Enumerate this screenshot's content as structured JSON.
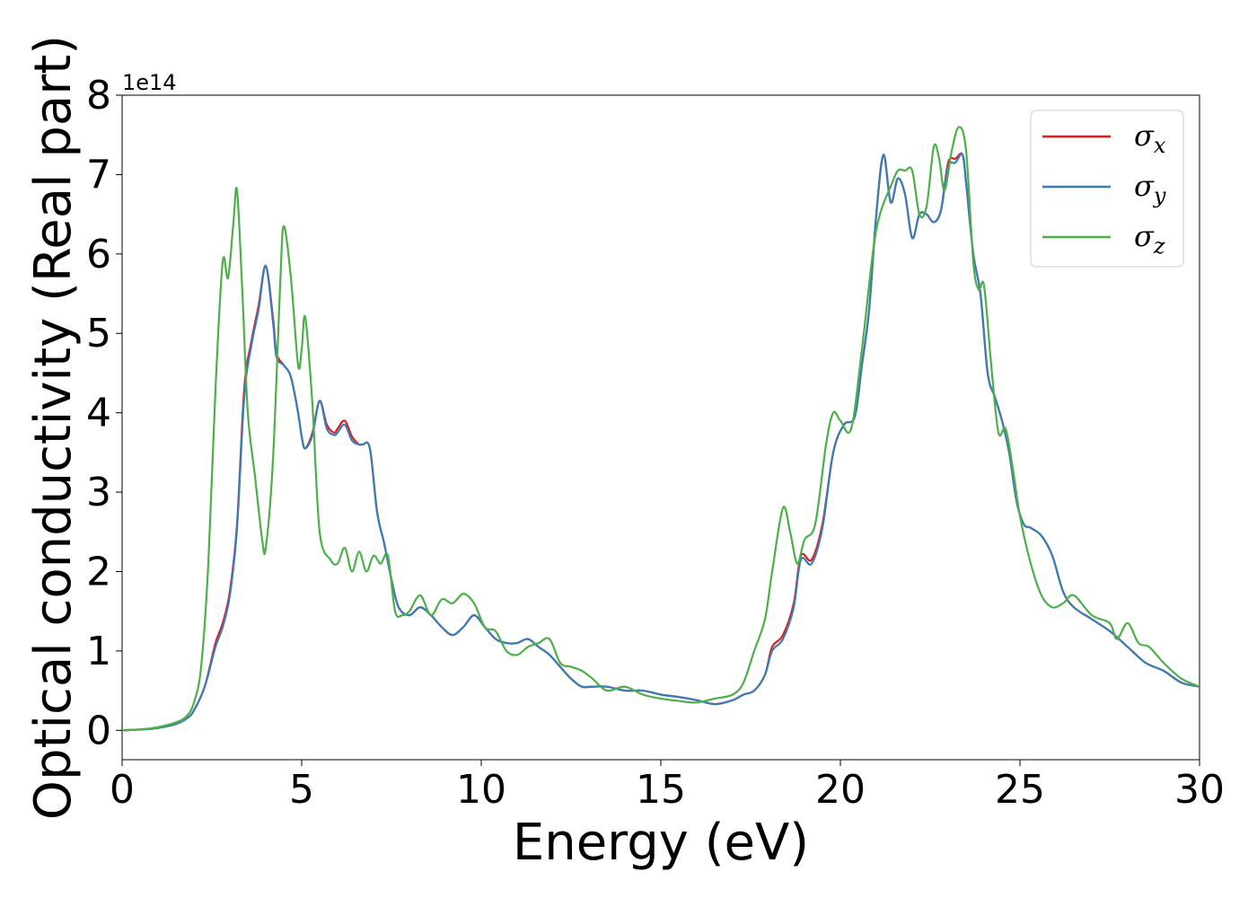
{
  "chart_data": {
    "type": "line",
    "xlabel": "Energy (eV)",
    "ylabel": "Optical conductivity (Real part)",
    "y_offset_label": "1e14",
    "y_scale_factor": 100000000000000.0,
    "xlim": [
      0,
      30
    ],
    "ylim": [
      -0.37,
      8.0
    ],
    "xticks": [
      0,
      5,
      10,
      15,
      20,
      25,
      30
    ],
    "xtick_labels": [
      "0",
      "5",
      "10",
      "15",
      "20",
      "25",
      "30"
    ],
    "yticks": [
      0,
      1,
      2,
      3,
      4,
      5,
      6,
      7,
      8
    ],
    "ytick_labels": [
      "0",
      "1",
      "2",
      "3",
      "4",
      "5",
      "6",
      "7",
      "8"
    ],
    "grid": false,
    "legend_position": "top-right",
    "series": [
      {
        "name": "σx",
        "legend_base": "σ",
        "legend_sub": "x",
        "color": "#e41a1c",
        "x": [
          0,
          0.5,
          1,
          1.5,
          1.8,
          2.0,
          2.3,
          2.6,
          2.8,
          3.0,
          3.2,
          3.4,
          3.6,
          3.8,
          4.0,
          4.2,
          4.3,
          4.5,
          4.7,
          4.9,
          5.0,
          5.1,
          5.3,
          5.5,
          5.7,
          5.9,
          6.0,
          6.2,
          6.4,
          6.6,
          6.7,
          6.9,
          7.1,
          7.3,
          7.5,
          7.7,
          8.0,
          8.3,
          8.6,
          8.9,
          9.2,
          9.5,
          9.8,
          10.1,
          10.4,
          10.7,
          11.0,
          11.3,
          11.6,
          11.9,
          12.2,
          12.5,
          12.8,
          13.1,
          13.5,
          14.0,
          14.5,
          15.0,
          15.5,
          16.0,
          16.5,
          17.0,
          17.3,
          17.6,
          17.9,
          18.1,
          18.4,
          18.7,
          18.9,
          19.2,
          19.5,
          19.8,
          20.1,
          20.4,
          20.6,
          20.8,
          21.0,
          21.2,
          21.4,
          21.6,
          21.8,
          22.0,
          22.2,
          22.4,
          22.6,
          22.8,
          23.0,
          23.2,
          23.4,
          23.5,
          23.7,
          23.9,
          24.1,
          24.3,
          24.5,
          24.7,
          24.9,
          25.1,
          25.3,
          25.6,
          25.9,
          26.2,
          26.5,
          27.0,
          27.5,
          28.0,
          28.5,
          29.0,
          29.5,
          30.0
        ],
        "y": [
          0,
          0.01,
          0.03,
          0.08,
          0.15,
          0.25,
          0.55,
          1.1,
          1.35,
          1.75,
          2.6,
          4.3,
          4.9,
          5.35,
          5.85,
          5.2,
          4.75,
          4.6,
          4.45,
          4.0,
          3.7,
          3.55,
          3.75,
          4.15,
          3.85,
          3.75,
          3.8,
          3.9,
          3.7,
          3.6,
          3.6,
          3.55,
          2.75,
          2.35,
          1.9,
          1.55,
          1.45,
          1.55,
          1.45,
          1.3,
          1.2,
          1.3,
          1.45,
          1.3,
          1.15,
          1.1,
          1.1,
          1.15,
          1.05,
          0.95,
          0.8,
          0.65,
          0.55,
          0.55,
          0.55,
          0.5,
          0.5,
          0.45,
          0.42,
          0.38,
          0.33,
          0.38,
          0.45,
          0.5,
          0.7,
          1.05,
          1.2,
          1.6,
          2.2,
          2.15,
          2.6,
          3.5,
          3.85,
          3.95,
          4.6,
          5.3,
          6.5,
          7.25,
          6.65,
          6.95,
          6.75,
          6.2,
          6.5,
          6.5,
          6.4,
          6.55,
          7.15,
          7.2,
          7.25,
          6.9,
          6.0,
          5.5,
          4.5,
          4.2,
          3.9,
          3.5,
          2.9,
          2.6,
          2.55,
          2.45,
          2.2,
          1.75,
          1.55,
          1.4,
          1.25,
          1.05,
          0.85,
          0.75,
          0.6,
          0.55
        ]
      },
      {
        "name": "σy",
        "legend_base": "σ",
        "legend_sub": "y",
        "color": "#377eb8",
        "x": [
          0,
          0.5,
          1,
          1.5,
          1.8,
          2.0,
          2.3,
          2.6,
          2.8,
          3.0,
          3.2,
          3.4,
          3.6,
          3.8,
          4.0,
          4.2,
          4.3,
          4.5,
          4.7,
          4.9,
          5.0,
          5.1,
          5.3,
          5.5,
          5.7,
          5.9,
          6.0,
          6.2,
          6.4,
          6.6,
          6.7,
          6.9,
          7.1,
          7.3,
          7.5,
          7.7,
          8.0,
          8.3,
          8.6,
          8.9,
          9.2,
          9.5,
          9.8,
          10.1,
          10.4,
          10.7,
          11.0,
          11.3,
          11.6,
          11.9,
          12.2,
          12.5,
          12.8,
          13.1,
          13.5,
          14.0,
          14.5,
          15.0,
          15.5,
          16.0,
          16.5,
          17.0,
          17.3,
          17.6,
          17.9,
          18.1,
          18.4,
          18.7,
          18.9,
          19.2,
          19.5,
          19.8,
          20.1,
          20.4,
          20.6,
          20.8,
          21.0,
          21.2,
          21.4,
          21.6,
          21.8,
          22.0,
          22.2,
          22.4,
          22.6,
          22.8,
          23.0,
          23.2,
          23.4,
          23.5,
          23.7,
          23.9,
          24.1,
          24.3,
          24.5,
          24.7,
          24.9,
          25.1,
          25.3,
          25.6,
          25.9,
          26.2,
          26.5,
          27.0,
          27.5,
          28.0,
          28.5,
          29.0,
          29.5,
          30.0
        ],
        "y": [
          0,
          0.01,
          0.03,
          0.08,
          0.15,
          0.25,
          0.55,
          1.05,
          1.3,
          1.7,
          2.55,
          4.2,
          4.85,
          5.3,
          5.85,
          5.15,
          4.7,
          4.6,
          4.45,
          4.0,
          3.7,
          3.55,
          3.72,
          4.15,
          3.8,
          3.72,
          3.75,
          3.85,
          3.65,
          3.6,
          3.6,
          3.55,
          2.75,
          2.35,
          1.9,
          1.55,
          1.45,
          1.55,
          1.45,
          1.3,
          1.2,
          1.3,
          1.45,
          1.3,
          1.15,
          1.1,
          1.1,
          1.15,
          1.05,
          0.95,
          0.8,
          0.65,
          0.55,
          0.55,
          0.55,
          0.5,
          0.5,
          0.45,
          0.42,
          0.38,
          0.33,
          0.38,
          0.45,
          0.5,
          0.7,
          1.0,
          1.15,
          1.55,
          2.15,
          2.1,
          2.55,
          3.5,
          3.85,
          3.95,
          4.6,
          5.3,
          6.5,
          7.25,
          6.65,
          6.95,
          6.75,
          6.2,
          6.5,
          6.5,
          6.4,
          6.55,
          7.1,
          7.15,
          7.25,
          6.9,
          6.0,
          5.5,
          4.5,
          4.2,
          3.9,
          3.5,
          2.9,
          2.6,
          2.55,
          2.45,
          2.2,
          1.75,
          1.55,
          1.4,
          1.25,
          1.05,
          0.85,
          0.75,
          0.6,
          0.55
        ]
      },
      {
        "name": "σz",
        "legend_base": "σ",
        "legend_sub": "z",
        "color": "#4daf4a",
        "x": [
          0,
          0.5,
          1,
          1.5,
          1.8,
          2.0,
          2.2,
          2.4,
          2.6,
          2.8,
          2.95,
          3.1,
          3.2,
          3.35,
          3.5,
          3.7,
          3.9,
          4.0,
          4.2,
          4.4,
          4.5,
          4.7,
          4.9,
          5.0,
          5.1,
          5.3,
          5.5,
          5.8,
          6.0,
          6.2,
          6.4,
          6.6,
          6.8,
          7.0,
          7.2,
          7.4,
          7.6,
          7.8,
          8.0,
          8.3,
          8.6,
          8.9,
          9.2,
          9.5,
          9.8,
          10.1,
          10.4,
          10.7,
          11.0,
          11.3,
          11.6,
          11.9,
          12.2,
          12.5,
          12.8,
          13.1,
          13.5,
          14.0,
          14.5,
          15.0,
          15.5,
          16.0,
          16.5,
          17.0,
          17.3,
          17.6,
          17.9,
          18.1,
          18.4,
          18.6,
          18.8,
          19.0,
          19.3,
          19.6,
          19.8,
          20.0,
          20.3,
          20.6,
          20.9,
          21.1,
          21.4,
          21.6,
          21.8,
          22.0,
          22.2,
          22.4,
          22.6,
          22.75,
          22.9,
          23.1,
          23.3,
          23.5,
          23.7,
          23.85,
          24.0,
          24.2,
          24.4,
          24.6,
          24.8,
          25.0,
          25.3,
          25.6,
          25.9,
          26.2,
          26.5,
          27.0,
          27.5,
          27.7,
          28.0,
          28.3,
          28.6,
          29.0,
          29.5,
          30.0
        ],
        "y": [
          0,
          0.01,
          0.04,
          0.1,
          0.18,
          0.35,
          0.8,
          2.1,
          4.3,
          5.9,
          5.7,
          6.4,
          6.8,
          5.5,
          4.0,
          3.2,
          2.4,
          2.3,
          3.4,
          5.6,
          6.35,
          5.7,
          4.6,
          4.8,
          5.2,
          4.1,
          2.5,
          2.15,
          2.1,
          2.3,
          2.0,
          2.25,
          2.0,
          2.2,
          2.1,
          2.2,
          1.5,
          1.45,
          1.5,
          1.7,
          1.45,
          1.65,
          1.6,
          1.72,
          1.6,
          1.3,
          1.25,
          1.0,
          0.95,
          1.05,
          1.1,
          1.15,
          0.85,
          0.8,
          0.75,
          0.65,
          0.5,
          0.55,
          0.45,
          0.4,
          0.37,
          0.35,
          0.4,
          0.45,
          0.6,
          1.0,
          1.4,
          2.0,
          2.8,
          2.5,
          2.1,
          2.4,
          2.6,
          3.6,
          4.0,
          3.9,
          3.8,
          4.8,
          6.0,
          6.5,
          6.85,
          7.05,
          7.05,
          7.05,
          6.5,
          6.6,
          7.35,
          7.2,
          6.8,
          7.3,
          7.6,
          7.3,
          5.9,
          5.55,
          5.6,
          4.6,
          3.75,
          3.8,
          3.3,
          2.7,
          2.1,
          1.7,
          1.55,
          1.6,
          1.7,
          1.45,
          1.35,
          1.15,
          1.35,
          1.1,
          1.05,
          0.85,
          0.65,
          0.55
        ]
      }
    ]
  }
}
